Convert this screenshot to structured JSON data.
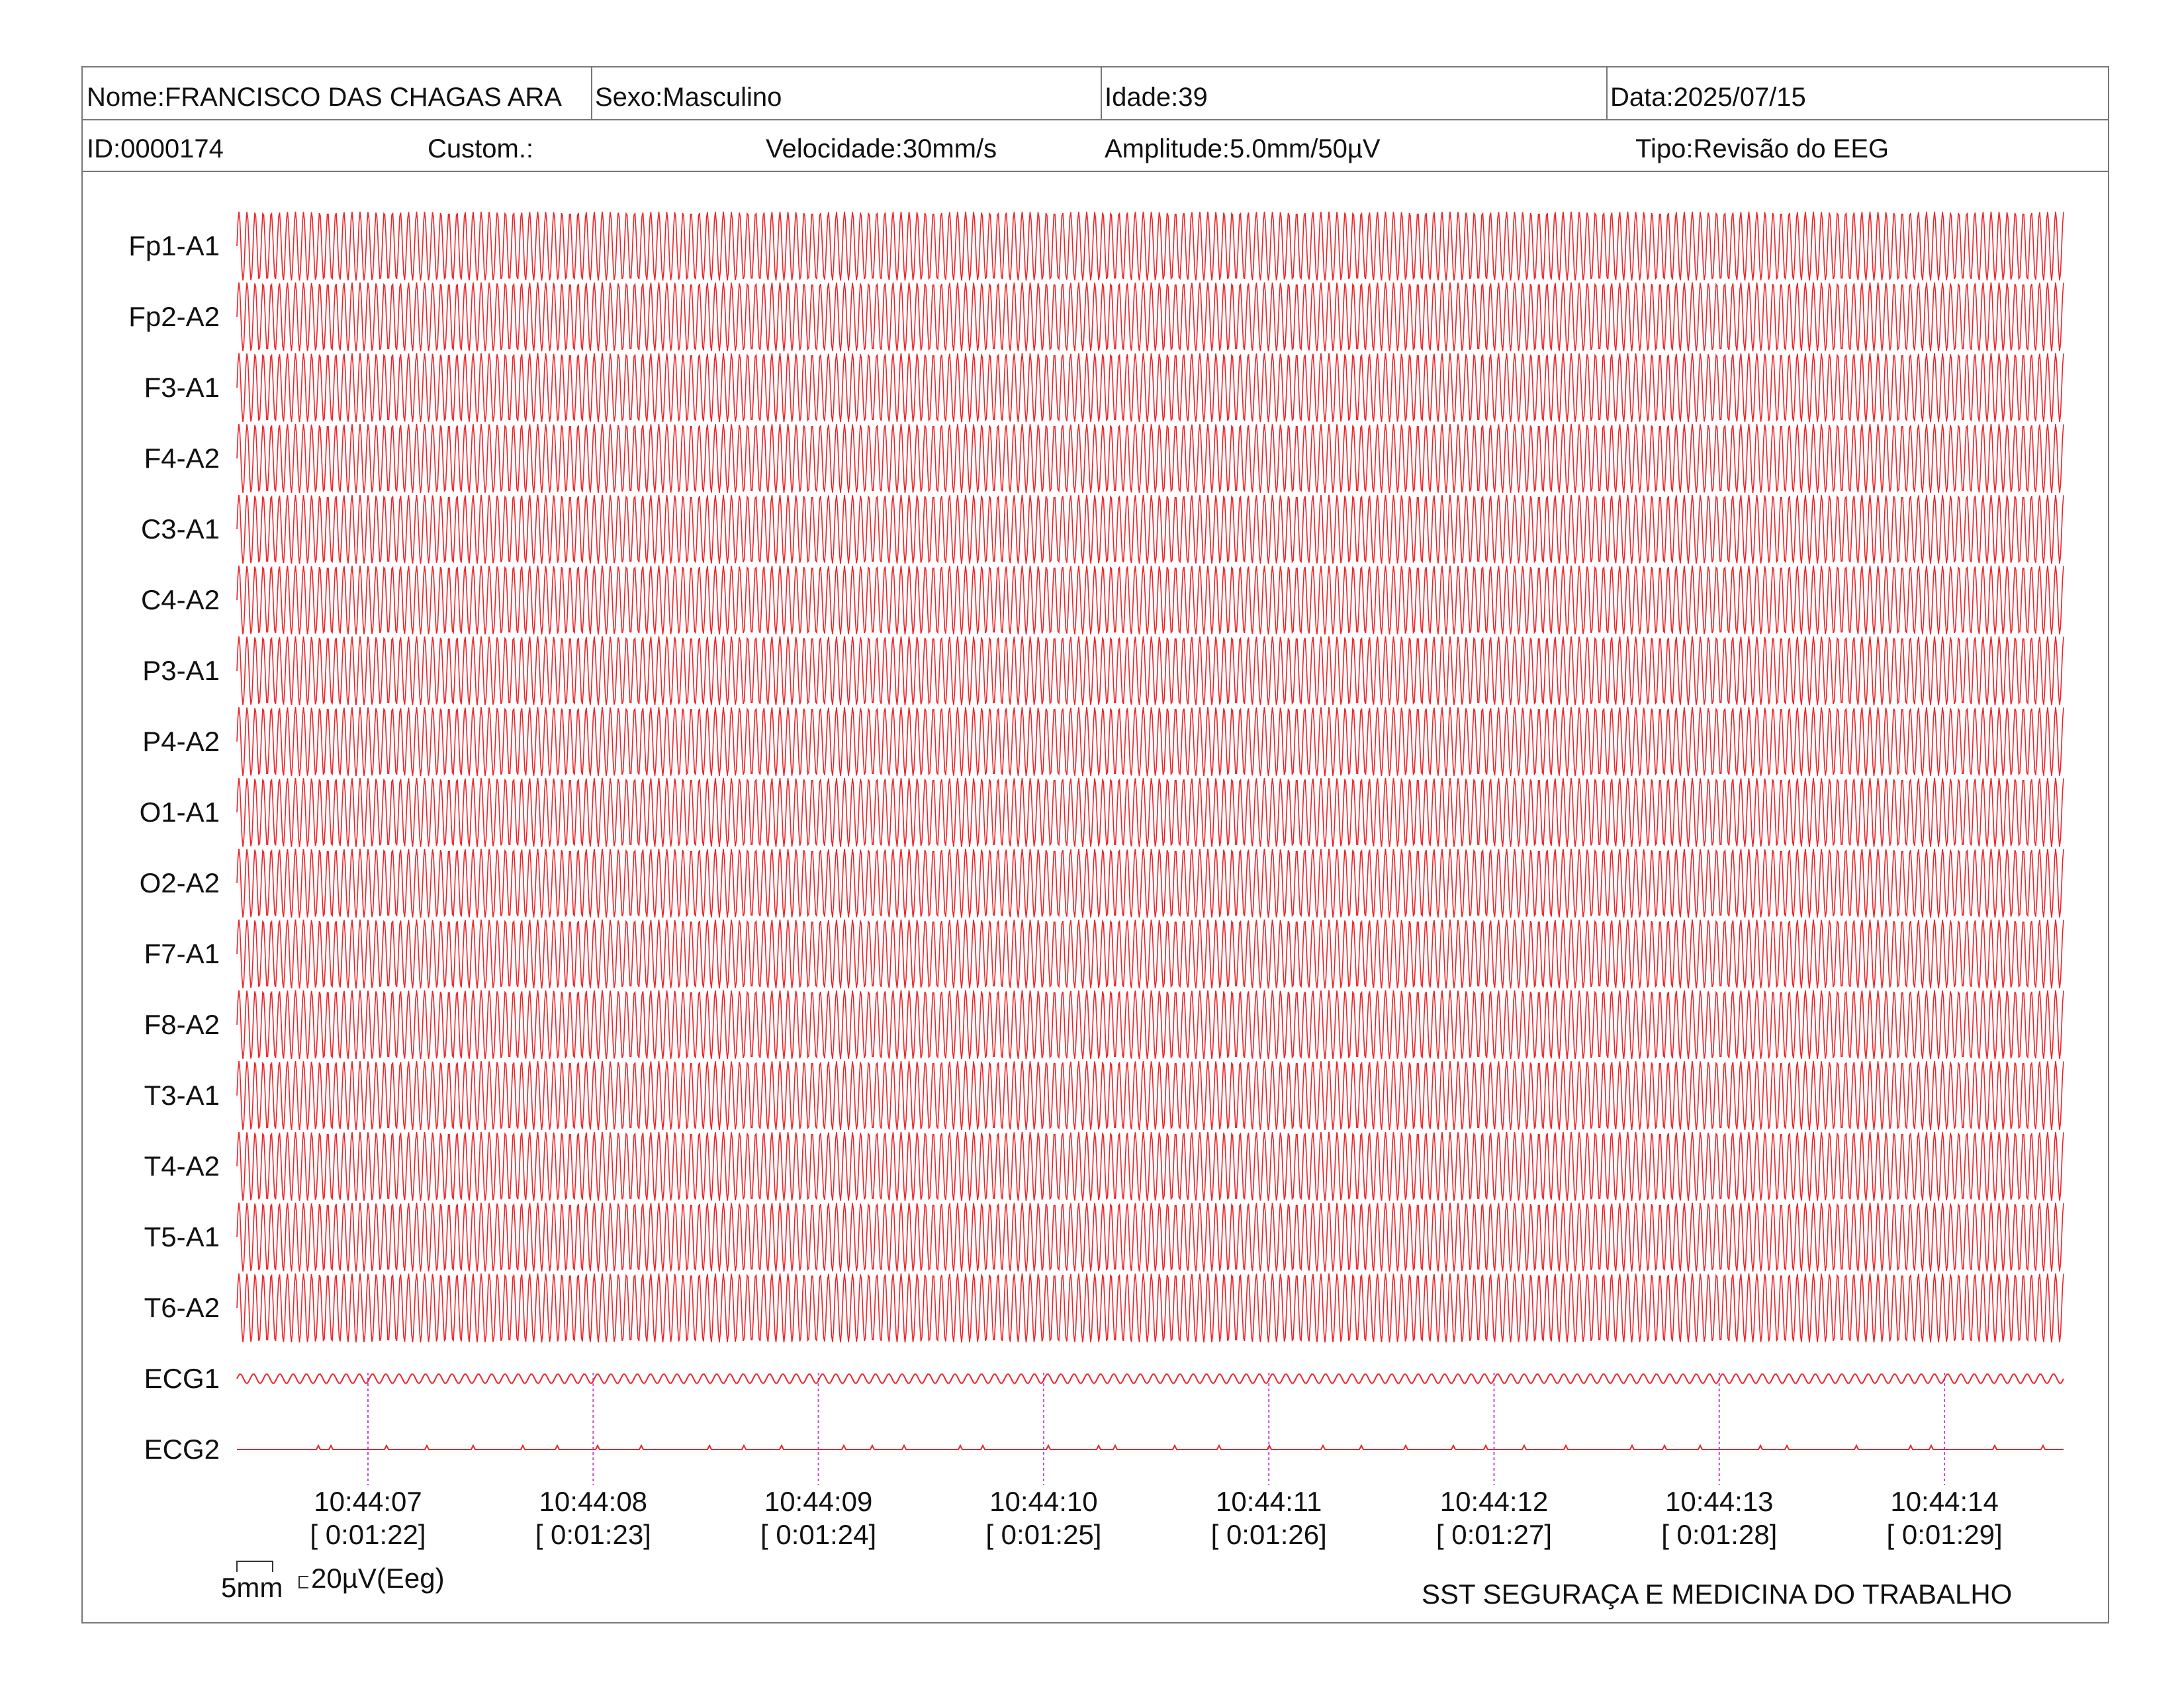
{
  "header": {
    "nome": "Nome:FRANCISCO DAS CHAGAS ARA",
    "sexo": "Sexo:Masculino",
    "idade": "Idade:39",
    "data": "Data:2025/07/15",
    "id": "ID:0000174",
    "custom": "Custom.:",
    "velocidade": "Velocidade:30mm/s",
    "amplitude": "Amplitude:5.0mm/50µV",
    "tipo": "Tipo:Revisão do EEG"
  },
  "channels": [
    {
      "label": "Fp1-A1",
      "type": "eeg"
    },
    {
      "label": "Fp2-A2",
      "type": "eeg"
    },
    {
      "label": "F3-A1",
      "type": "eeg"
    },
    {
      "label": "F4-A2",
      "type": "eeg"
    },
    {
      "label": "C3-A1",
      "type": "eeg"
    },
    {
      "label": "C4-A2",
      "type": "eeg"
    },
    {
      "label": "P3-A1",
      "type": "eeg"
    },
    {
      "label": "P4-A2",
      "type": "eeg"
    },
    {
      "label": "O1-A1",
      "type": "eeg"
    },
    {
      "label": "O2-A2",
      "type": "eeg"
    },
    {
      "label": "F7-A1",
      "type": "eeg"
    },
    {
      "label": "F8-A2",
      "type": "eeg"
    },
    {
      "label": "T3-A1",
      "type": "eeg"
    },
    {
      "label": "T4-A2",
      "type": "eeg"
    },
    {
      "label": "T5-A1",
      "type": "eeg"
    },
    {
      "label": "T6-A2",
      "type": "eeg"
    },
    {
      "label": "ECG1",
      "type": "ecg1"
    },
    {
      "label": "ECG2",
      "type": "ecg2"
    }
  ],
  "time_marks": [
    {
      "time": "10:44:07",
      "elapsed": "[ 0:01:22]"
    },
    {
      "time": "10:44:08",
      "elapsed": "[ 0:01:23]"
    },
    {
      "time": "10:44:09",
      "elapsed": "[ 0:01:24]"
    },
    {
      "time": "10:44:10",
      "elapsed": "[ 0:01:25]"
    },
    {
      "time": "10:44:11",
      "elapsed": "[ 0:01:26]"
    },
    {
      "time": "10:44:12",
      "elapsed": "[ 0:01:27]"
    },
    {
      "time": "10:44:13",
      "elapsed": "[ 0:01:28]"
    },
    {
      "time": "10:44:14",
      "elapsed": "[ 0:01:29]"
    }
  ],
  "scale": {
    "time_label": "5mm",
    "amp_label": "20µV(Eeg)"
  },
  "footer": {
    "company": "SST SEGURAÇA E MEDICINA DO TRABALHO"
  },
  "colors": {
    "trace": "#e8262a",
    "marker": "#cc44dd",
    "border": "#777777"
  }
}
